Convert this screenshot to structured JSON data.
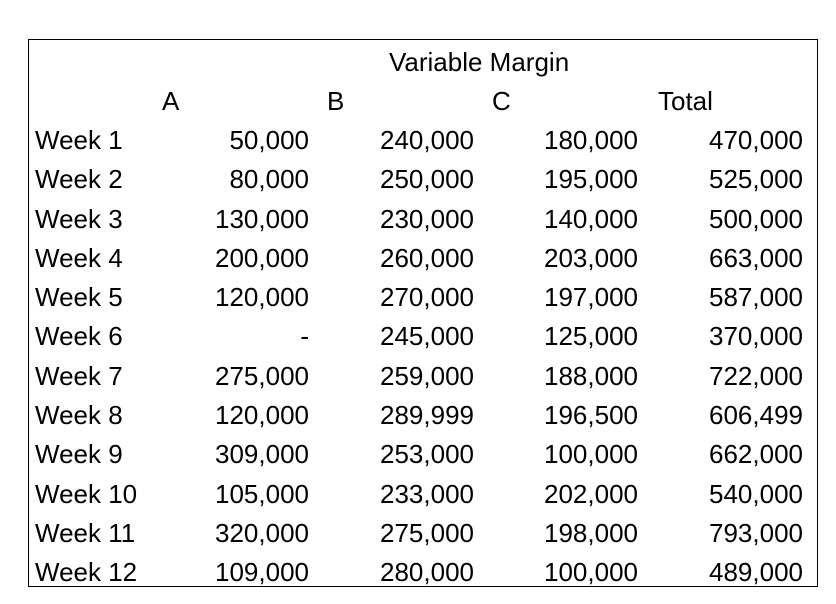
{
  "table": {
    "title": "Variable Margin",
    "columns": [
      "A",
      "B",
      "C",
      "Total"
    ],
    "rows": [
      {
        "label": "Week 1",
        "a": "50,000",
        "b": "240,000",
        "c": "180,000",
        "total": "470,000"
      },
      {
        "label": "Week 2",
        "a": "80,000",
        "b": "250,000",
        "c": "195,000",
        "total": "525,000"
      },
      {
        "label": "Week 3",
        "a": "130,000",
        "b": "230,000",
        "c": "140,000",
        "total": "500,000"
      },
      {
        "label": "Week 4",
        "a": "200,000",
        "b": "260,000",
        "c": "203,000",
        "total": "663,000"
      },
      {
        "label": "Week 5",
        "a": "120,000",
        "b": "270,000",
        "c": "197,000",
        "total": "587,000"
      },
      {
        "label": "Week 6",
        "a": "-",
        "b": "245,000",
        "c": "125,000",
        "total": "370,000"
      },
      {
        "label": "Week 7",
        "a": "275,000",
        "b": "259,000",
        "c": "188,000",
        "total": "722,000"
      },
      {
        "label": "Week 8",
        "a": "120,000",
        "b": "289,999",
        "c": "196,500",
        "total": "606,499"
      },
      {
        "label": "Week 9",
        "a": "309,000",
        "b": "253,000",
        "c": "100,000",
        "total": "662,000"
      },
      {
        "label": "Week 10",
        "a": "105,000",
        "b": "233,000",
        "c": "202,000",
        "total": "540,000"
      },
      {
        "label": "Week 11",
        "a": "320,000",
        "b": "275,000",
        "c": "198,000",
        "total": "793,000"
      },
      {
        "label": "Week 12",
        "a": "109,000",
        "b": "280,000",
        "c": "100,000",
        "total": "489,000"
      }
    ]
  }
}
